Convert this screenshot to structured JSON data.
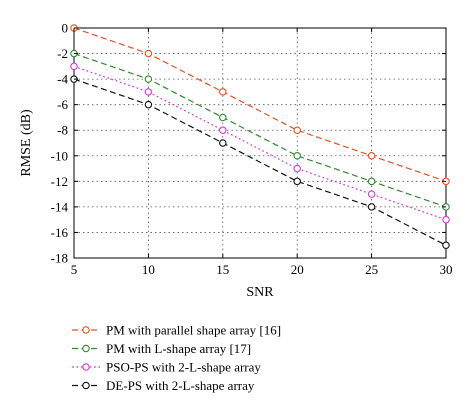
{
  "chart_data": {
    "type": "line",
    "xlabel": "SNR",
    "ylabel": "RMSE (dB)",
    "x": [
      5,
      10,
      15,
      20,
      25,
      30
    ],
    "xlim": [
      5,
      30
    ],
    "ylim": [
      -18,
      0
    ],
    "xticks": [
      5,
      10,
      15,
      20,
      25,
      30
    ],
    "yticks": [
      0,
      -2,
      -4,
      -6,
      -8,
      -10,
      -12,
      -14,
      -16,
      -18
    ],
    "grid": true,
    "legend_position": "below",
    "series": [
      {
        "name": "PM with parallel shape array [16]",
        "values": [
          0,
          -2,
          -5,
          -8,
          -10,
          -12
        ],
        "color": "#e8501f",
        "dash": "dashed"
      },
      {
        "name": "PM with L-shape array [17]",
        "values": [
          -2,
          -4,
          -7,
          -10,
          -12,
          -14
        ],
        "color": "#2e8b2e",
        "dash": "dashed"
      },
      {
        "name": "PSO-PS with 2-L-shape array",
        "values": [
          -3,
          -5,
          -8,
          -11,
          -13,
          -15
        ],
        "color": "#d63ad6",
        "dash": "dotted"
      },
      {
        "name": "DE-PS with 2-L-shape array",
        "values": [
          -4,
          -6,
          -9,
          -12,
          -14,
          -17
        ],
        "color": "#111111",
        "dash": "dashed"
      }
    ]
  }
}
